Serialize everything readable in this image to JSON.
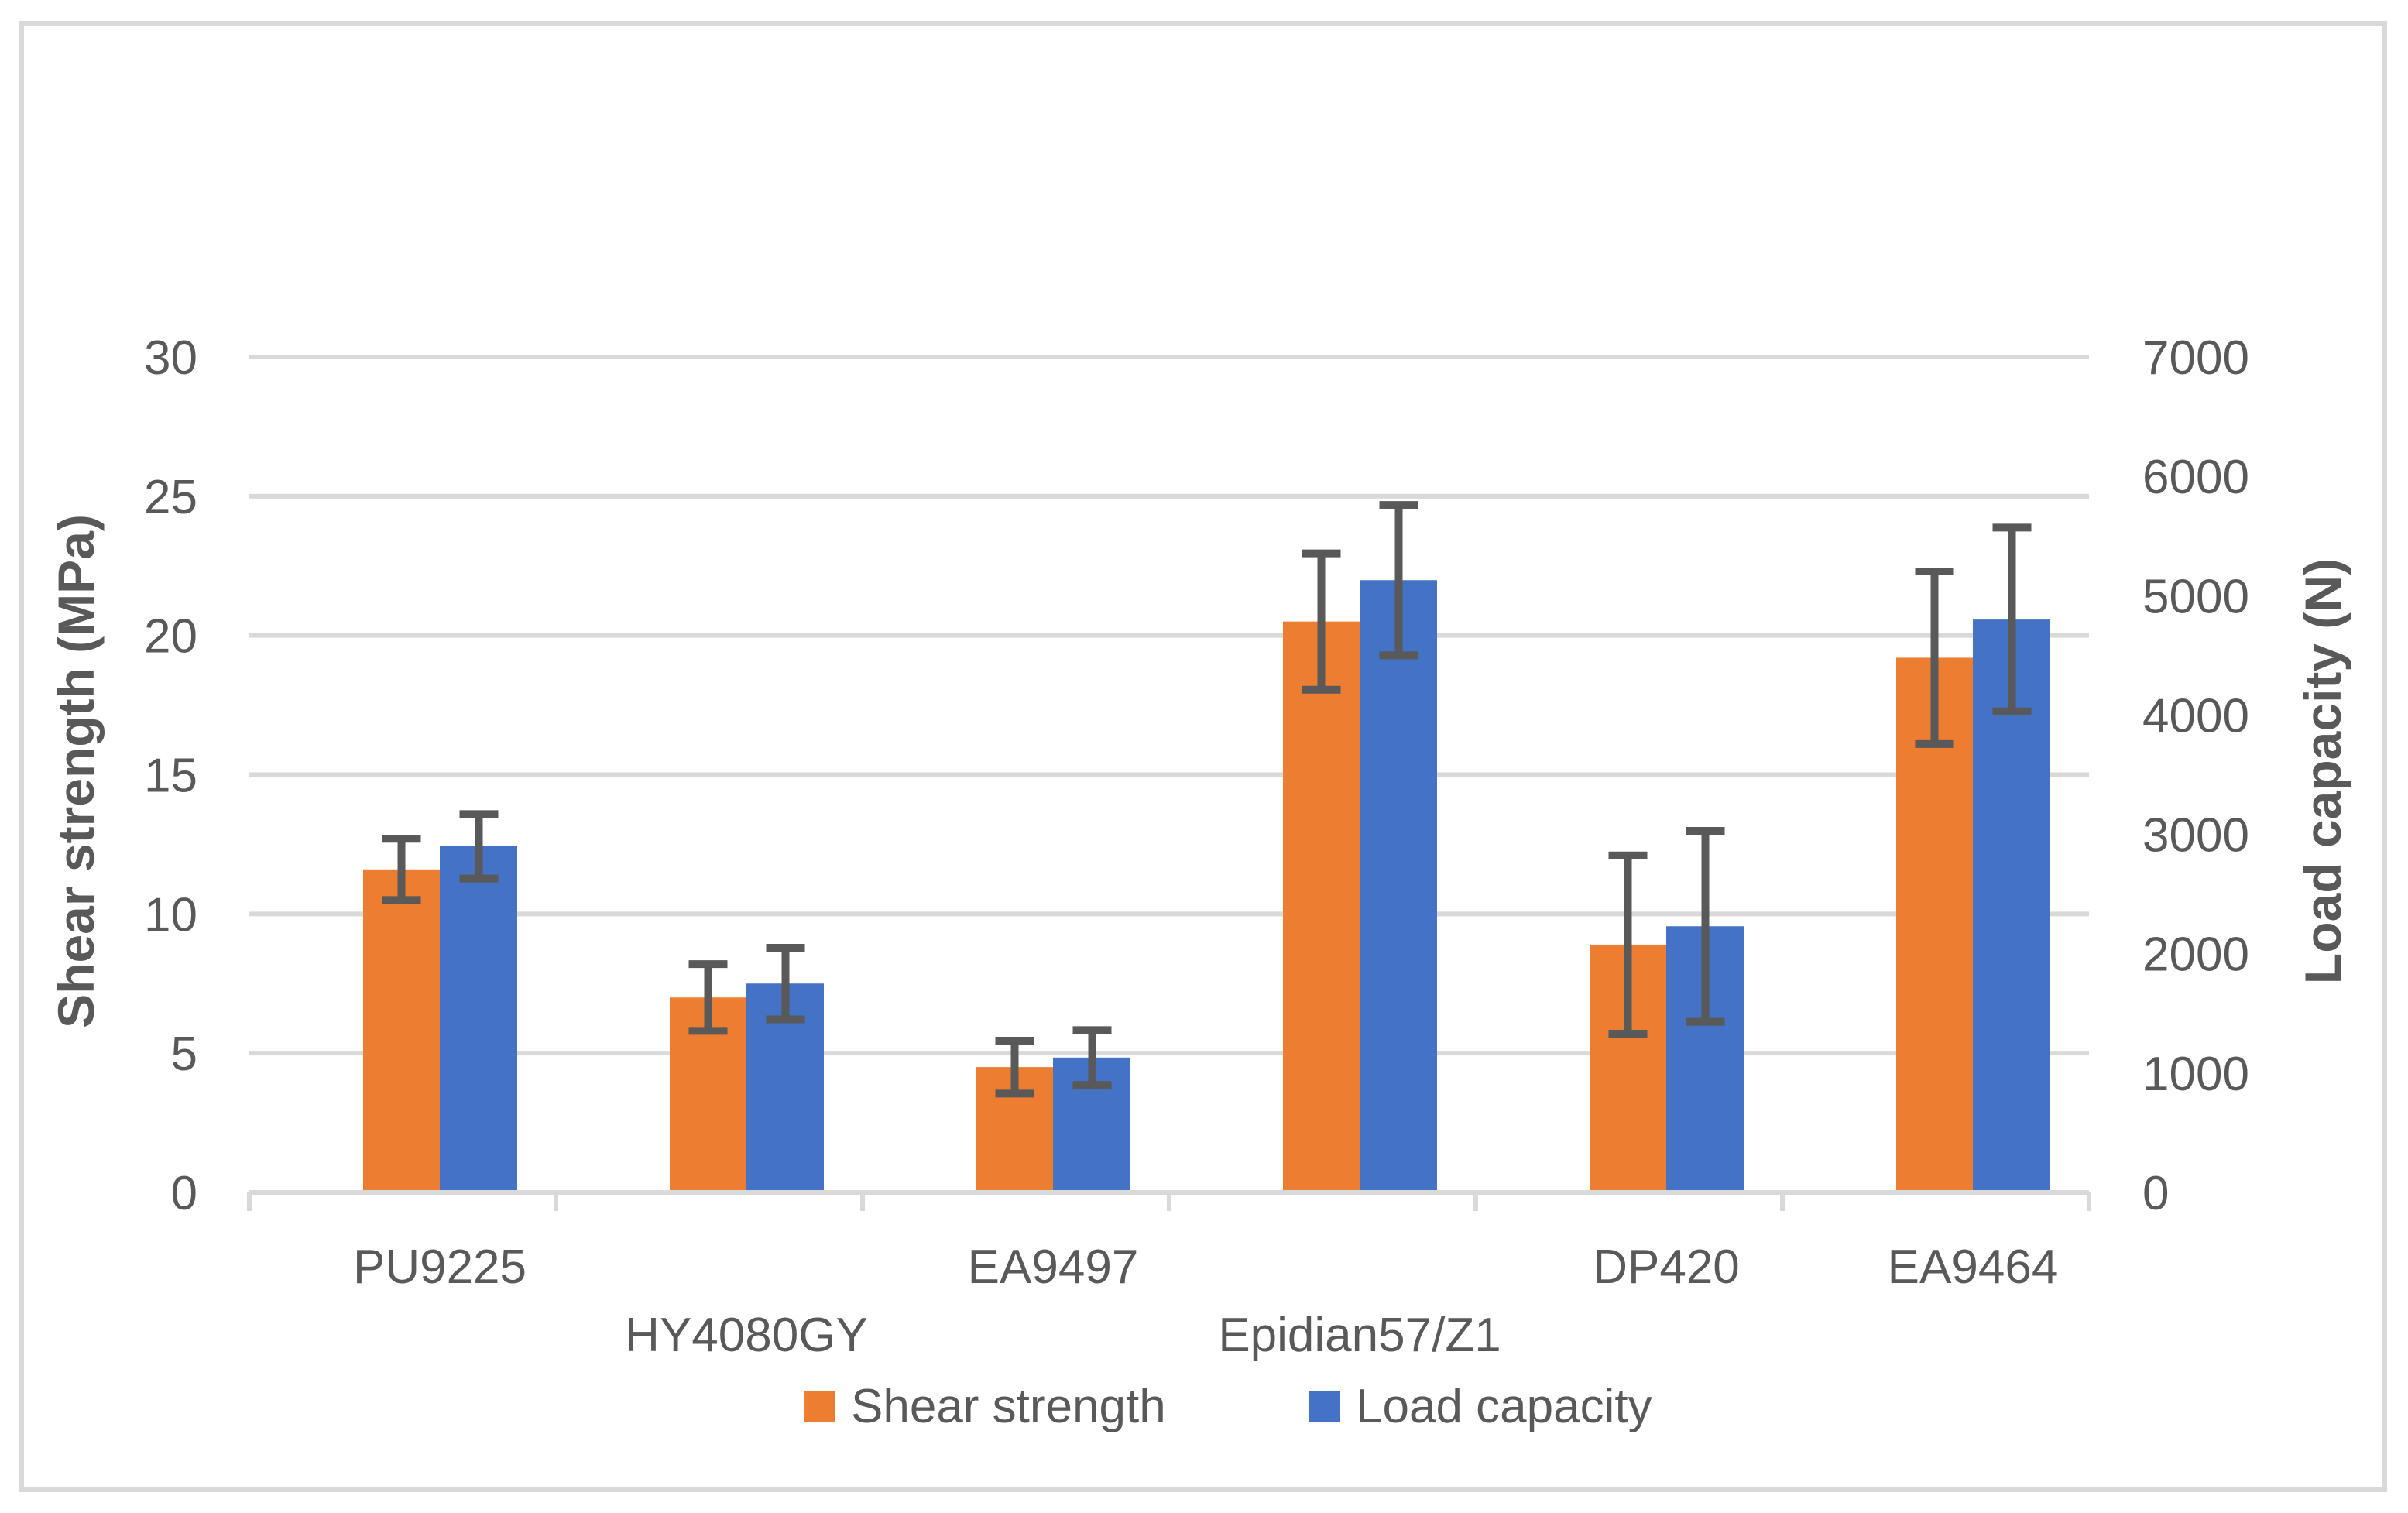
{
  "figure": {
    "background": "#FFFFFF",
    "border_color": "#D9D9D9"
  },
  "chart_data": {
    "type": "bar",
    "title": "",
    "categories": [
      "PU9225",
      "HY4080GY",
      "EA9497",
      "Epidian57/Z1",
      "DP420",
      "EA9464"
    ],
    "category_label_rows": [
      0,
      1,
      0,
      1,
      0,
      0
    ],
    "xlabel": "",
    "ylabel_left": "Shear strength (MPa)",
    "ylabel_right": "Load capacity (N)",
    "axis_left": {
      "label": "Shear strength (MPa)",
      "min": 0,
      "max": 30,
      "ticks": [
        0,
        5,
        10,
        15,
        20,
        25,
        30
      ]
    },
    "axis_right": {
      "label": "Load capacity (N)",
      "min": 0,
      "max": 7000,
      "ticks": [
        0,
        1000,
        2000,
        3000,
        4000,
        5000,
        6000,
        7000
      ]
    },
    "series": [
      {
        "name": "Shear strength",
        "axis": "left",
        "units": "MPa",
        "color": "#ED7D31",
        "values": [
          11.6,
          7.0,
          4.5,
          20.5,
          8.9,
          19.2
        ],
        "error_bars": [
          1.1,
          1.2,
          0.95,
          2.45,
          3.2,
          3.1
        ]
      },
      {
        "name": "Load capacity",
        "axis": "right",
        "units": "N",
        "color": "#4472C4",
        "values": [
          2900,
          1750,
          1130,
          5130,
          2230,
          4800
        ],
        "error_bars": [
          270,
          300,
          230,
          630,
          800,
          770
        ]
      }
    ],
    "grid": true,
    "legend_position": "bottom",
    "colors": {
      "gridline": "#D9D9D9",
      "axis_line": "#D9D9D9",
      "axis_text": "#595959",
      "error_bar": "#595959"
    }
  }
}
